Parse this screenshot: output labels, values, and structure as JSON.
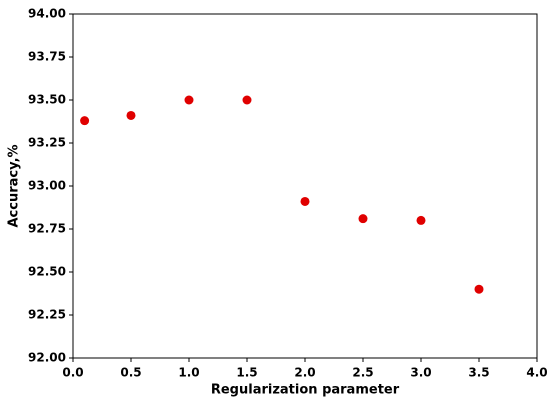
{
  "chart_data": {
    "type": "scatter",
    "x_label": "Regularization parameter",
    "y_label": "Accuracy,%",
    "x": [
      0.1,
      0.5,
      1.0,
      1.5,
      2.0,
      2.5,
      3.0,
      3.5
    ],
    "series": [
      {
        "name": "Accuracy",
        "color": "#e00000",
        "values": [
          93.38,
          93.41,
          93.5,
          93.5,
          92.91,
          92.81,
          92.8,
          92.4
        ]
      }
    ],
    "xlim": [
      0,
      4
    ],
    "ylim": [
      92,
      94
    ],
    "xticks": [
      {
        "value": 0,
        "label": "0.0"
      },
      0.5,
      {
        "value": 1,
        "label": "1.0"
      },
      1.5,
      {
        "value": 2,
        "label": "2.0"
      },
      2.5,
      {
        "value": 3,
        "label": "3.0"
      },
      3.5,
      {
        "value": 4,
        "label": "4.0"
      }
    ],
    "yticks": [
      {
        "value": 92,
        "label": "92.00"
      },
      92.25,
      {
        "value": 92.5,
        "label": "92.50"
      },
      92.75,
      {
        "value": 93,
        "label": "93.00"
      },
      93.25,
      {
        "value": 93.5,
        "label": "93.50"
      },
      93.75,
      {
        "value": 94,
        "label": "94.00"
      }
    ],
    "grid": false
  }
}
